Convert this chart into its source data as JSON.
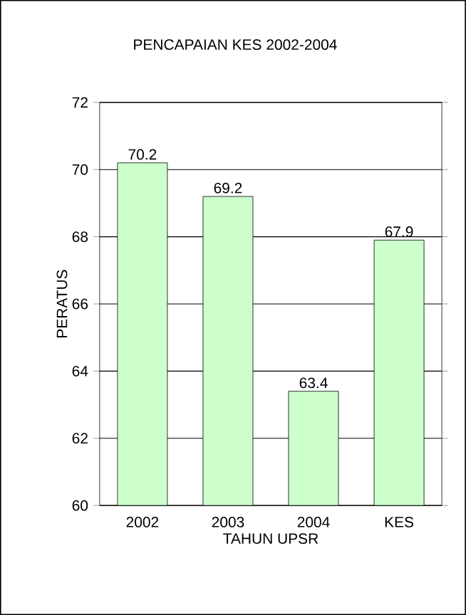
{
  "chart_data": {
    "type": "bar",
    "title": "PENCAPAIAN KES 2002-2004",
    "xlabel": "TAHUN UPSR",
    "ylabel": "PERATUS",
    "categories": [
      "2002",
      "2003",
      "2004",
      "KES"
    ],
    "values": [
      70.2,
      69.2,
      63.4,
      67.9
    ],
    "color": "#ccffcc",
    "ylim": [
      60,
      72
    ],
    "yticks": [
      60,
      62,
      64,
      66,
      68,
      70,
      72
    ],
    "grid": "y",
    "data_labels": true
  }
}
